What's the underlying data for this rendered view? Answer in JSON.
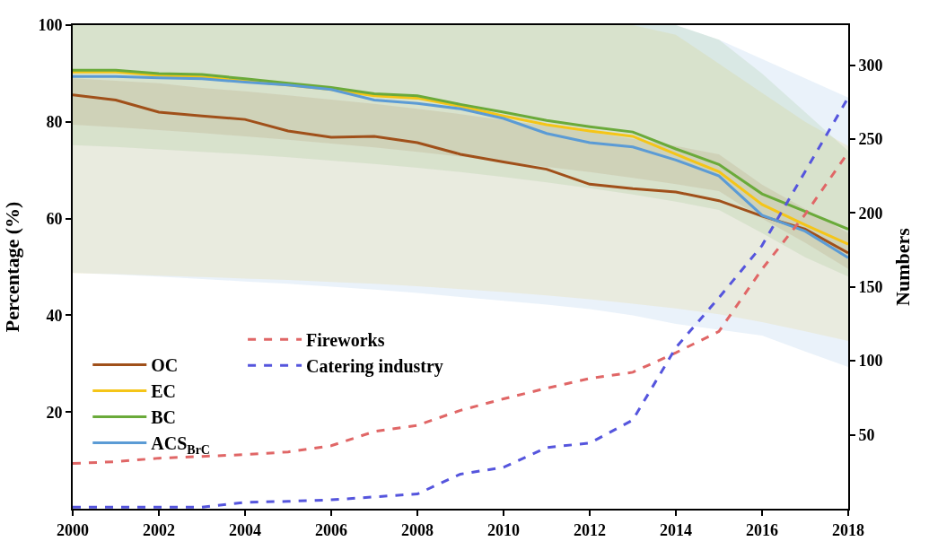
{
  "chart_data": {
    "type": "line",
    "ylabel": "Percentage (%)",
    "y2label": "Numbers",
    "x": [
      2000,
      2001,
      2002,
      2003,
      2004,
      2005,
      2006,
      2007,
      2008,
      2009,
      2010,
      2011,
      2012,
      2013,
      2014,
      2015,
      2016,
      2017,
      2018
    ],
    "xlim": [
      2000,
      2018
    ],
    "xticks": [
      2000,
      2002,
      2004,
      2006,
      2008,
      2010,
      2012,
      2014,
      2016,
      2018
    ],
    "ylim": [
      0,
      100
    ],
    "yticks": [
      20,
      40,
      60,
      80,
      100
    ],
    "y2lim": [
      0,
      327
    ],
    "y2ticks": [
      50,
      100,
      150,
      200,
      250,
      300
    ],
    "legend": "bottom left",
    "marker": "none",
    "series": [
      {
        "name": "OC",
        "color": "#a0501a",
        "line_style": "solid",
        "values": [
          85.6,
          84.5,
          82,
          81.2,
          80.5,
          78.1,
          76.8,
          77,
          75.7,
          73.3,
          71.7,
          70.2,
          67.1,
          66.2,
          65.5,
          63.7,
          60.5,
          57.8,
          52.9
        ],
        "lower": [
          79.4,
          78.9,
          78.3,
          77.7,
          77,
          76.3,
          75.5,
          74.7,
          73.8,
          72.8,
          71.8,
          70.7,
          69.6,
          68.4,
          67.1,
          65.7,
          60,
          55,
          49.6
        ],
        "upper": [
          89,
          88.5,
          88,
          87,
          86.3,
          85.5,
          84.6,
          83.7,
          82.7,
          81.6,
          80.4,
          79.2,
          77.9,
          76.5,
          75,
          73.3,
          67,
          62,
          57
        ]
      },
      {
        "name": "EC",
        "color": "#f5c518",
        "line_style": "solid",
        "values": [
          90.3,
          90.3,
          89.6,
          89.3,
          88.4,
          87.6,
          86.7,
          85.4,
          84.9,
          83.2,
          81.2,
          79.4,
          78.1,
          77,
          73.3,
          69.7,
          62.9,
          58.7,
          54.7
        ],
        "lower": [
          48.7,
          48.5,
          48.2,
          47.9,
          47.6,
          47.3,
          46.9,
          46.5,
          46,
          45.4,
          44.8,
          44.1,
          43.3,
          42.4,
          41.4,
          40.2,
          38.6,
          36.7,
          34.7
        ],
        "upper": [
          100,
          100,
          100,
          100,
          100,
          100,
          100,
          100,
          100,
          100,
          100,
          100,
          100,
          100,
          98,
          92,
          86,
          80,
          75
        ]
      },
      {
        "name": "BC",
        "color": "#6aaa3a",
        "line_style": "solid",
        "values": [
          90.7,
          90.7,
          90,
          89.8,
          88.9,
          88,
          87.1,
          85.8,
          85.4,
          83.6,
          82,
          80.3,
          79,
          77.9,
          74.4,
          71.2,
          65.1,
          61.5,
          57.8
        ],
        "lower": [
          75.2,
          74.8,
          74.3,
          73.8,
          73.3,
          72.7,
          72,
          71.3,
          70.5,
          69.6,
          68.6,
          67.5,
          66.3,
          65,
          63.5,
          61.8,
          57,
          52,
          48
        ],
        "upper": [
          100,
          100,
          100,
          100,
          100,
          100,
          100,
          100,
          100,
          100,
          100,
          100,
          100,
          100,
          100,
          97,
          90,
          82,
          74
        ]
      },
      {
        "name": "ACS$_{BrC}$",
        "color": "#5b9bd5",
        "line_style": "solid",
        "values": [
          89.4,
          89.4,
          89.1,
          88.9,
          88.2,
          87.6,
          86.7,
          84.5,
          83.8,
          82.7,
          80.7,
          77.6,
          75.7,
          74.8,
          72.1,
          68.8,
          60.7,
          57.4,
          51.9
        ],
        "lower": [
          48.8,
          48.4,
          48,
          47.5,
          47,
          46.5,
          45.9,
          45.3,
          44.6,
          43.8,
          43,
          42.2,
          41.3,
          40,
          38.2,
          37,
          35.8,
          32.5,
          29.3
        ],
        "upper": [
          100,
          100,
          100,
          100,
          100,
          100,
          100,
          100,
          100,
          100,
          100,
          100,
          100,
          100,
          100,
          97,
          93,
          89,
          85
        ]
      },
      {
        "name": "Fireworks",
        "color": "#e06666",
        "line_style": "dashed",
        "axis": "y2",
        "values": [
          30.6,
          31.8,
          34.2,
          35.4,
          36.6,
          38.4,
          42.6,
          52.2,
          56.4,
          66.5,
          74.3,
          81.5,
          88.1,
          92.3,
          105.5,
          119.9,
          162,
          199,
          241
        ]
      },
      {
        "name": "Catering industry",
        "color": "#5555dd",
        "line_style": "dashed",
        "axis": "y2",
        "values": [
          1,
          1,
          1,
          1,
          4.4,
          5,
          6,
          8,
          10,
          23.4,
          28,
          41.4,
          44.4,
          60,
          109,
          142.7,
          178,
          228,
          278
        ]
      }
    ]
  }
}
